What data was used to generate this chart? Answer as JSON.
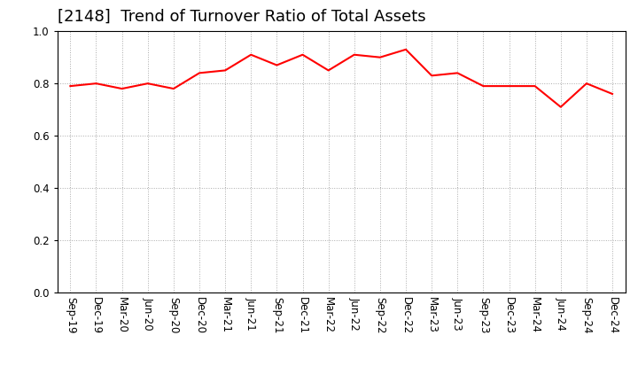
{
  "title": "[2148]  Trend of Turnover Ratio of Total Assets",
  "labels": [
    "Sep-19",
    "Dec-19",
    "Mar-20",
    "Jun-20",
    "Sep-20",
    "Dec-20",
    "Mar-21",
    "Jun-21",
    "Sep-21",
    "Dec-21",
    "Mar-22",
    "Jun-22",
    "Sep-22",
    "Dec-22",
    "Mar-23",
    "Jun-23",
    "Sep-23",
    "Dec-23",
    "Mar-24",
    "Jun-24",
    "Sep-24",
    "Dec-24"
  ],
  "values": [
    0.79,
    0.8,
    0.78,
    0.8,
    0.78,
    0.84,
    0.85,
    0.91,
    0.87,
    0.91,
    0.85,
    0.91,
    0.9,
    0.93,
    0.83,
    0.84,
    0.79,
    0.79,
    0.79,
    0.71,
    0.8,
    0.76
  ],
  "line_color": "#FF0000",
  "line_width": 1.5,
  "ylim": [
    0.0,
    1.0
  ],
  "yticks": [
    0.0,
    0.2,
    0.4,
    0.6,
    0.8,
    1.0
  ],
  "background_color": "#FFFFFF",
  "grid_color": "#AAAAAA",
  "title_fontsize": 13,
  "tick_fontsize": 8.5
}
